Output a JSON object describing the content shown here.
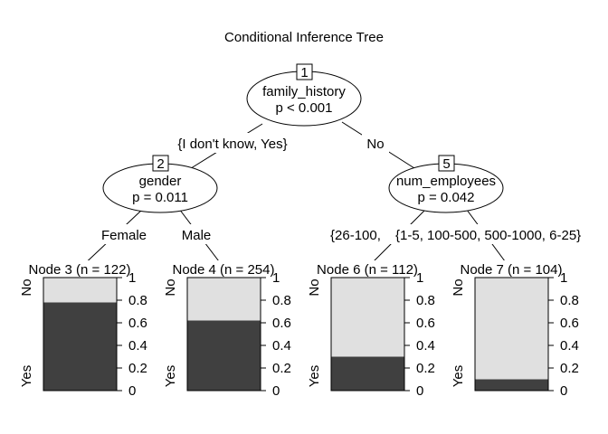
{
  "title": "Conditional Inference Tree",
  "inner_nodes": [
    {
      "id": "1",
      "variable": "family_history",
      "pvalue": "p < 0.001"
    },
    {
      "id": "2",
      "variable": "gender",
      "pvalue": "p = 0.011"
    },
    {
      "id": "5",
      "variable": "num_employees",
      "pvalue": "p = 0.042"
    }
  ],
  "edge_labels": [
    "{I don't know, Yes}",
    "No",
    "Female",
    "Male",
    "{26-100,",
    "{1-5, 100-500, 500-1000, 6-25}"
  ],
  "terminal_nodes": [
    {
      "title": "Node 3 (n = 122)",
      "yes_fraction": 0.78
    },
    {
      "title": "Node 4 (n = 254)",
      "yes_fraction": 0.62
    },
    {
      "title": "Node 6 (n = 112)",
      "yes_fraction": 0.3
    },
    {
      "title": "Node 7 (n = 104)",
      "yes_fraction": 0.1
    }
  ],
  "response_labels": {
    "top": "No",
    "bottom": "Yes"
  },
  "axis_ticks": [
    "1",
    "0.8",
    "0.6",
    "0.4",
    "0.2",
    "0"
  ],
  "colors": {
    "yes": "#404040",
    "no": "#e0e0e0",
    "stroke": "#000000"
  }
}
